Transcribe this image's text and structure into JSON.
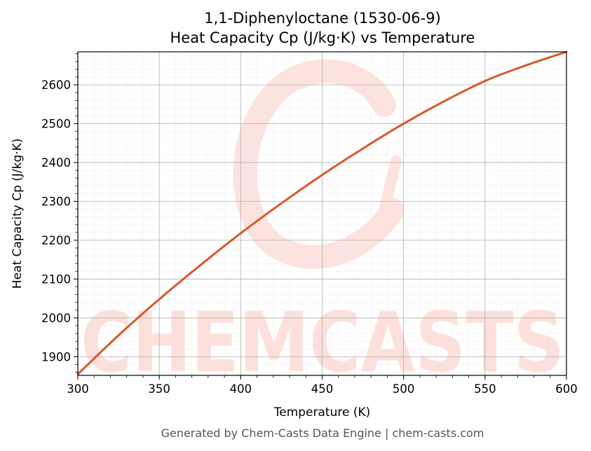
{
  "colors": {
    "line": "#d9572a",
    "watermark": "#fde0db",
    "grid_major": "#b0b0b0",
    "grid_minor": "#e4e4e4",
    "footer": "#555555"
  },
  "watermark": {
    "text": "CHEMCASTS"
  },
  "footer": {
    "text": "Generated by Chem-Casts Data Engine | chem-casts.com"
  },
  "chart_data": {
    "type": "line",
    "title": "1,1-Diphenyloctane (1530-06-9)",
    "subtitle": "Heat Capacity Cp (J/kg·K) vs Temperature",
    "xlabel": "Temperature (K)",
    "ylabel": "Heat Capacity Cp (J/kg·K)",
    "xlim": [
      300,
      600
    ],
    "ylim": [
      1852,
      2685
    ],
    "xticks": [
      300,
      350,
      400,
      450,
      500,
      550,
      600
    ],
    "yticks": [
      1900,
      2000,
      2100,
      2200,
      2300,
      2400,
      2500,
      2600
    ],
    "grid": true,
    "legend": "none",
    "series": [
      {
        "x": [
          300,
          325,
          350,
          375,
          400,
          425,
          450,
          475,
          500,
          525,
          550,
          575,
          600
        ],
        "y": [
          1855,
          1955,
          2048,
          2135,
          2218,
          2295,
          2368,
          2436,
          2500,
          2558,
          2610,
          2650,
          2685
        ]
      }
    ]
  }
}
